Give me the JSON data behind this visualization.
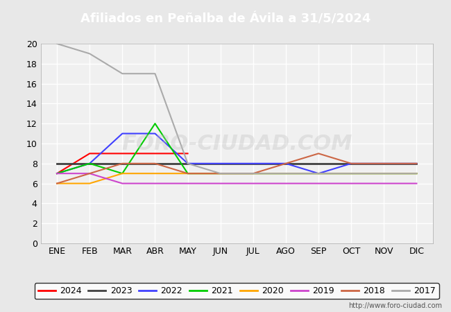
{
  "title": "Afiliados en Peñalba de Ávila a 31/5/2024",
  "title_color": "#ffffff",
  "title_bg_color": "#4472c4",
  "months": [
    "ENE",
    "FEB",
    "MAR",
    "ABR",
    "MAY",
    "JUN",
    "JUL",
    "AGO",
    "SEP",
    "OCT",
    "NOV",
    "DIC"
  ],
  "ylim": [
    0,
    20
  ],
  "yticks": [
    0,
    2,
    4,
    6,
    8,
    10,
    12,
    14,
    16,
    18,
    20
  ],
  "series": [
    {
      "label": "2024",
      "color": "#ff0000",
      "data": [
        7,
        9,
        9,
        9,
        9,
        null,
        null,
        null,
        null,
        null,
        null,
        null
      ]
    },
    {
      "label": "2023",
      "color": "#404040",
      "data": [
        8,
        8,
        8,
        8,
        8,
        8,
        8,
        8,
        8,
        8,
        8,
        8
      ]
    },
    {
      "label": "2022",
      "color": "#4040ff",
      "data": [
        7,
        8,
        11,
        11,
        8,
        8,
        8,
        8,
        7,
        8,
        8,
        8
      ]
    },
    {
      "label": "2021",
      "color": "#00cc00",
      "data": [
        7,
        8,
        7,
        12,
        7,
        7,
        7,
        7,
        7,
        7,
        7,
        7
      ]
    },
    {
      "label": "2020",
      "color": "#ffa500",
      "data": [
        6,
        6,
        7,
        7,
        7,
        7,
        7,
        7,
        7,
        7,
        7,
        7
      ]
    },
    {
      "label": "2019",
      "color": "#cc44cc",
      "data": [
        7,
        7,
        6,
        6,
        6,
        6,
        6,
        6,
        6,
        6,
        6,
        6
      ]
    },
    {
      "label": "2018",
      "color": "#cc6644",
      "data": [
        6,
        7,
        8,
        8,
        7,
        7,
        7,
        8,
        9,
        8,
        8,
        8
      ]
    },
    {
      "label": "2017",
      "color": "#aaaaaa",
      "data": [
        20,
        19,
        17,
        17,
        8,
        7,
        7,
        7,
        7,
        7,
        7,
        7
      ]
    }
  ],
  "watermark": "FORO-CIUDAD.COM",
  "url": "http://www.foro-ciudad.com",
  "bg_color": "#e8e8e8",
  "plot_bg_color": "#f0f0f0",
  "grid_color": "#ffffff",
  "legend_border_color": "#000000"
}
